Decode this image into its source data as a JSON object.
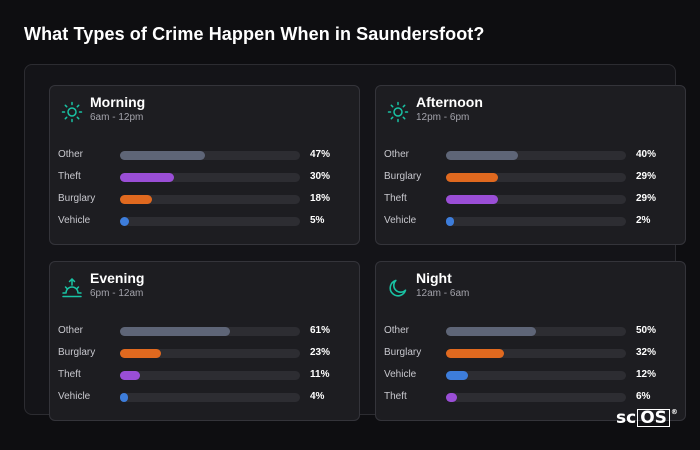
{
  "page_title": "What Types of Crime Happen When in Saundersfoot?",
  "watermark": {
    "prefix": "sc",
    "boxed": "OS",
    "mark": "®"
  },
  "colors": {
    "Other": "#5e6577",
    "Theft": "#9a4ed6",
    "Burglary": "#e0691f",
    "Vehicle": "#3d7ddb",
    "icon_accent": "#19c3a4"
  },
  "chart_data": [
    {
      "type": "bar",
      "title": "Morning",
      "subtitle": "6am - 12pm",
      "icon": "sun-icon",
      "xlim": [
        0,
        100
      ],
      "categories": [
        "Other",
        "Theft",
        "Burglary",
        "Vehicle"
      ],
      "values": [
        47,
        30,
        18,
        5
      ],
      "labels": [
        "47%",
        "30%",
        "18%",
        "5%"
      ]
    },
    {
      "type": "bar",
      "title": "Afternoon",
      "subtitle": "12pm - 6pm",
      "icon": "sun-icon",
      "xlim": [
        0,
        100
      ],
      "categories": [
        "Other",
        "Burglary",
        "Theft",
        "Vehicle"
      ],
      "values": [
        40,
        29,
        29,
        2
      ],
      "labels": [
        "40%",
        "29%",
        "29%",
        "2%"
      ]
    },
    {
      "type": "bar",
      "title": "Evening",
      "subtitle": "6pm - 12am",
      "icon": "sunset-icon",
      "xlim": [
        0,
        100
      ],
      "categories": [
        "Other",
        "Burglary",
        "Theft",
        "Vehicle"
      ],
      "values": [
        61,
        23,
        11,
        4
      ],
      "labels": [
        "61%",
        "23%",
        "11%",
        "4%"
      ]
    },
    {
      "type": "bar",
      "title": "Night",
      "subtitle": "12am - 6am",
      "icon": "moon-icon",
      "xlim": [
        0,
        100
      ],
      "categories": [
        "Other",
        "Burglary",
        "Vehicle",
        "Theft"
      ],
      "values": [
        50,
        32,
        12,
        6
      ],
      "labels": [
        "50%",
        "32%",
        "12%",
        "6%"
      ]
    }
  ]
}
